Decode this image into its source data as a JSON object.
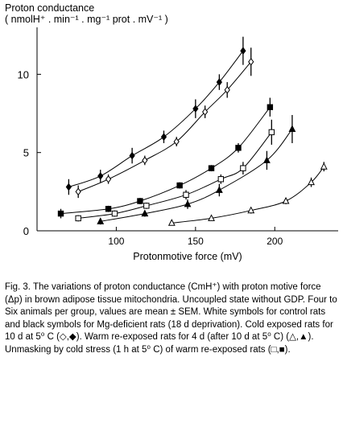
{
  "chart_data": {
    "type": "line",
    "title": "",
    "ylabel_line1": "Proton conductance",
    "ylabel_line2": "( nmolH⁺ . min⁻¹ . mg⁻¹ prot . mV⁻¹ )",
    "xlabel": "Protonmotive force (mV)",
    "xlim": [
      50,
      240
    ],
    "ylim": [
      0,
      13
    ],
    "xticks": [
      100,
      150,
      200
    ],
    "yticks": [
      0,
      5,
      10
    ],
    "grid": false,
    "legend": "none",
    "series": [
      {
        "marker": "filled-diamond",
        "x": [
          70,
          90,
          110,
          130,
          150,
          165,
          180
        ],
        "y": [
          2.8,
          3.5,
          4.8,
          6.0,
          7.8,
          9.5,
          11.5
        ],
        "err": [
          0.5,
          0.4,
          0.5,
          0.4,
          0.6,
          0.5,
          0.9
        ]
      },
      {
        "marker": "open-diamond",
        "x": [
          76,
          95,
          118,
          138,
          156,
          170,
          185
        ],
        "y": [
          2.5,
          3.3,
          4.5,
          5.7,
          7.6,
          9.0,
          10.8
        ],
        "err": [
          0.4,
          0.3,
          0.3,
          0.3,
          0.4,
          0.5,
          0.9
        ]
      },
      {
        "marker": "filled-square",
        "x": [
          65,
          95,
          115,
          140,
          160,
          177,
          197
        ],
        "y": [
          1.1,
          1.4,
          1.9,
          2.9,
          4.0,
          5.3,
          7.9
        ],
        "err": [
          0.3,
          0.2,
          0.2,
          0.2,
          0.2,
          0.3,
          0.6
        ]
      },
      {
        "marker": "open-square",
        "x": [
          76,
          99,
          119,
          144,
          166,
          180,
          198
        ],
        "y": [
          0.8,
          1.1,
          1.6,
          2.3,
          3.3,
          4.0,
          6.3
        ],
        "err": [
          0.2,
          0.2,
          0.2,
          0.3,
          0.3,
          0.4,
          0.8
        ]
      },
      {
        "marker": "filled-triangle",
        "x": [
          90,
          118,
          145,
          165,
          195,
          211
        ],
        "y": [
          0.6,
          1.1,
          1.7,
          2.6,
          4.5,
          6.5
        ],
        "err": [
          0.2,
          0.2,
          0.3,
          0.4,
          0.6,
          0.9
        ]
      },
      {
        "marker": "open-triangle",
        "x": [
          135,
          160,
          185,
          207,
          223,
          231
        ],
        "y": [
          0.5,
          0.8,
          1.3,
          1.9,
          3.1,
          4.1
        ],
        "err": [
          0.15,
          0.15,
          0.2,
          0.2,
          0.3,
          0.3
        ]
      }
    ]
  },
  "caption": "Fig. 3.  The variations of proton conductance (CmH⁺) with proton motive force (Δp) in brown adipose tissue mitochondria.  Uncoupled state without GDP.  Four to Six animals per group, values are mean ± SEM.  White symbols for control rats and black symbols for Mg-deficient rats (18 d deprivation).  Cold exposed rats for 10 d at 5⁰ C (◇,◆).  Warm re-exposed rats for 4 d (after 10 d at 5⁰ C) (△,▲).  Unmasking by cold stress (1 h at 5⁰ C) of warm re-exposed rats (□,■).",
  "colors": {
    "ink": "#000000",
    "background": "#ffffff"
  }
}
